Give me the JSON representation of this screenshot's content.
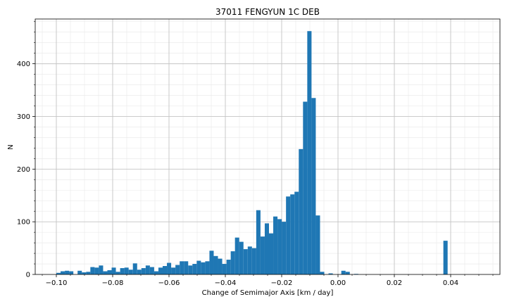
{
  "chart_data": {
    "type": "bar",
    "title": "37011 FENGYUN 1C DEB",
    "xlabel": "Change of Semimajor Axis [km / day]",
    "ylabel": "N",
    "xlim": [
      -0.1075,
      0.0575
    ],
    "ylim": [
      0,
      485
    ],
    "xticks": [
      -0.1,
      -0.08,
      -0.06,
      -0.04,
      -0.02,
      0.0,
      0.02,
      0.04
    ],
    "xtick_labels": [
      "−0.10",
      "−0.08",
      "−0.06",
      "−0.04",
      "−0.02",
      "0.00",
      "0.02",
      "0.04"
    ],
    "yticks": [
      0,
      100,
      200,
      300,
      400
    ],
    "ytick_labels": [
      "0",
      "100",
      "200",
      "300",
      "400"
    ],
    "grid": true,
    "minor_grid": true,
    "bar_color": "#1f77b4",
    "bin_edges_start": -0.1,
    "bin_width": 0.00151,
    "values": [
      3,
      6,
      7,
      6,
      0,
      7,
      4,
      5,
      14,
      13,
      17,
      6,
      8,
      13,
      5,
      12,
      13,
      9,
      21,
      9,
      12,
      17,
      14,
      6,
      13,
      16,
      22,
      13,
      18,
      25,
      25,
      17,
      20,
      26,
      23,
      25,
      45,
      35,
      30,
      20,
      28,
      44,
      70,
      62,
      48,
      53,
      50,
      122,
      72,
      97,
      78,
      110,
      105,
      100,
      148,
      152,
      157,
      238,
      328,
      462,
      335,
      112,
      5,
      0,
      2,
      0,
      0,
      7,
      5,
      0,
      1,
      0,
      0,
      0,
      0,
      0,
      0,
      0,
      0,
      0,
      0,
      0,
      0,
      0,
      0,
      0,
      0,
      0,
      0,
      0,
      0,
      64
    ]
  }
}
